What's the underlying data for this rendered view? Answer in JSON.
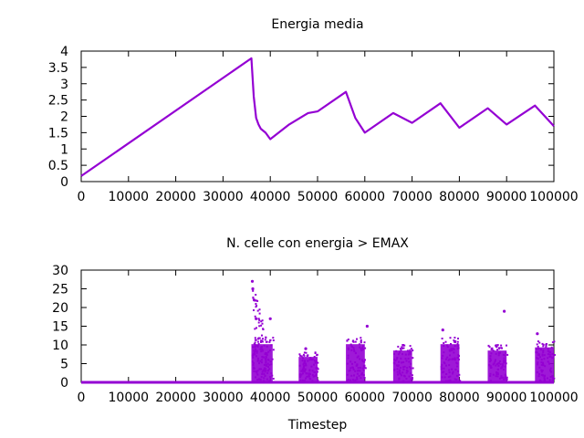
{
  "chart_data": [
    {
      "type": "line",
      "title": "Energia media",
      "xlabel": "",
      "ylabel": "",
      "xlim": [
        0,
        100000
      ],
      "ylim": [
        0,
        4
      ],
      "xticks": [
        0,
        10000,
        20000,
        30000,
        40000,
        50000,
        60000,
        70000,
        80000,
        90000,
        100000
      ],
      "xtick_labels": [
        "0",
        "10000",
        "20000",
        "30000",
        "40000",
        "50000",
        "60000",
        "70000",
        "80000",
        "90000",
        "100000"
      ],
      "yticks": [
        0,
        0.5,
        1,
        1.5,
        2,
        2.5,
        3,
        3.5,
        4
      ],
      "ytick_labels": [
        "0",
        "0.5",
        "1",
        "1.5",
        "2",
        "2.5",
        "3",
        "3.5",
        "4"
      ],
      "grid": false,
      "color": "#9400d3",
      "series": [
        {
          "x": [
            0,
            36000,
            36500,
            37000,
            37500,
            38000,
            39000,
            40000,
            44000,
            48000,
            50000,
            56000,
            58000,
            60000,
            66000,
            70000,
            76000,
            80000,
            86000,
            90000,
            96000,
            100000
          ],
          "y": [
            0.17,
            3.78,
            2.6,
            1.95,
            1.75,
            1.62,
            1.5,
            1.3,
            1.75,
            2.1,
            2.15,
            2.75,
            1.95,
            1.5,
            2.1,
            1.8,
            2.4,
            1.65,
            2.25,
            1.75,
            2.33,
            1.7
          ]
        }
      ]
    },
    {
      "type": "scatter",
      "title": "N. celle con energia > EMAX",
      "xlabel": "Timestep",
      "ylabel": "",
      "xlim": [
        0,
        100000
      ],
      "ylim": [
        0,
        30
      ],
      "xticks": [
        0,
        10000,
        20000,
        30000,
        40000,
        50000,
        60000,
        70000,
        80000,
        90000,
        100000
      ],
      "xtick_labels": [
        "0",
        "10000",
        "20000",
        "30000",
        "40000",
        "50000",
        "60000",
        "70000",
        "80000",
        "90000",
        "100000"
      ],
      "yticks": [
        0,
        5,
        10,
        15,
        20,
        25,
        30
      ],
      "ytick_labels": [
        "0",
        "5",
        "10",
        "15",
        "20",
        "25",
        "30"
      ],
      "grid": false,
      "color": "#9400d3",
      "baseline": {
        "x": [
          0,
          100000
        ],
        "y": 0
      },
      "bursts": [
        {
          "x_start": 36000,
          "x_end": 40500,
          "y_max": 12
        },
        {
          "x_start": 46000,
          "x_end": 50000,
          "y_max": 8
        },
        {
          "x_start": 56000,
          "x_end": 60000,
          "y_max": 12
        },
        {
          "x_start": 66000,
          "x_end": 70000,
          "y_max": 10
        },
        {
          "x_start": 76000,
          "x_end": 80000,
          "y_max": 12
        },
        {
          "x_start": 86000,
          "x_end": 90000,
          "y_max": 10
        },
        {
          "x_start": 96000,
          "x_end": 100000,
          "y_max": 11
        }
      ],
      "peaks": [
        {
          "x": 36200,
          "y": 27
        },
        {
          "x": 36300,
          "y": 25
        },
        {
          "x": 36600,
          "y": 22
        },
        {
          "x": 37000,
          "y": 17
        },
        {
          "x": 40000,
          "y": 17
        },
        {
          "x": 47500,
          "y": 9
        },
        {
          "x": 60500,
          "y": 15
        },
        {
          "x": 76500,
          "y": 14
        },
        {
          "x": 89500,
          "y": 19
        },
        {
          "x": 96500,
          "y": 13
        }
      ]
    }
  ]
}
